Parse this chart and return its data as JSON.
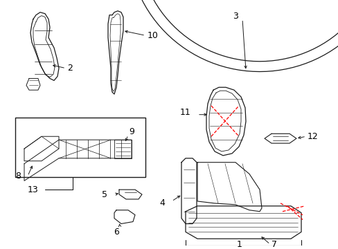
{
  "background_color": "#ffffff",
  "line_color": "#1a1a1a",
  "red_color": "#ff0000",
  "fig_width": 4.89,
  "fig_height": 3.6,
  "dpi": 100
}
